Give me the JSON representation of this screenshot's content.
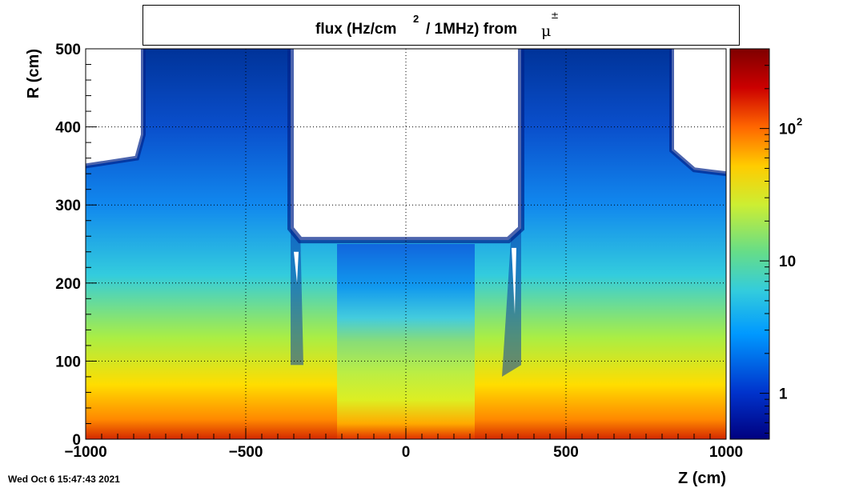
{
  "title": {
    "prefix": "flux (Hz/cm",
    "sup": "2",
    "rest": "/ 1MHz) from",
    "particle": "μ",
    "particle_sup": "±"
  },
  "timestamp": "Wed Oct  6 15:47:43 2021",
  "colors": {
    "scale": [
      "#00007f",
      "#0033cc",
      "#0099ff",
      "#33ccdd",
      "#66dd88",
      "#ccee33",
      "#ffcc00",
      "#ff6600",
      "#cc0000",
      "#7f0000"
    ]
  },
  "chart_data": {
    "type": "heatmap",
    "title": "flux (Hz/cm^2 / 1MHz) from μ±",
    "xlabel": "Z (cm)",
    "ylabel": "R (cm)",
    "xlim": [
      -1000,
      1000
    ],
    "ylim": [
      0,
      500
    ],
    "x_ticks": [
      "−1000",
      "−500",
      "0",
      "500",
      "1000"
    ],
    "x_tick_values": [
      -1000,
      -500,
      0,
      500,
      1000
    ],
    "y_ticks": [
      "0",
      "100",
      "200",
      "300",
      "400",
      "500"
    ],
    "y_tick_values": [
      0,
      100,
      200,
      300,
      400,
      500
    ],
    "grid": true,
    "colorbar": {
      "scale": "log",
      "range": [
        0.45,
        400
      ],
      "tick_labels": [
        {
          "text": "1",
          "value": 1
        },
        {
          "text": "10",
          "value": 10
        },
        {
          "text": "10",
          "sup": "2",
          "value": 100
        }
      ]
    },
    "empty_regions_boundary": {
      "description": "white (no flux) regions",
      "outer_z_abs_cm": 830,
      "outer_r_start_cm": 360,
      "central_gap_z_cm": [
        -360,
        360
      ],
      "central_gap_r_start_cm": 250
    }
  }
}
